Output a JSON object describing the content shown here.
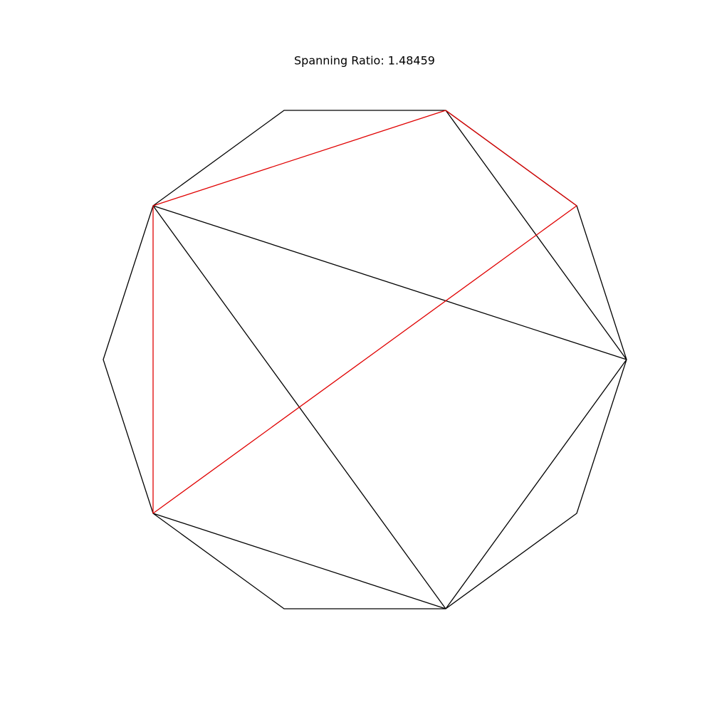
{
  "title": "Spanning Ratio: 1.48459"
}
